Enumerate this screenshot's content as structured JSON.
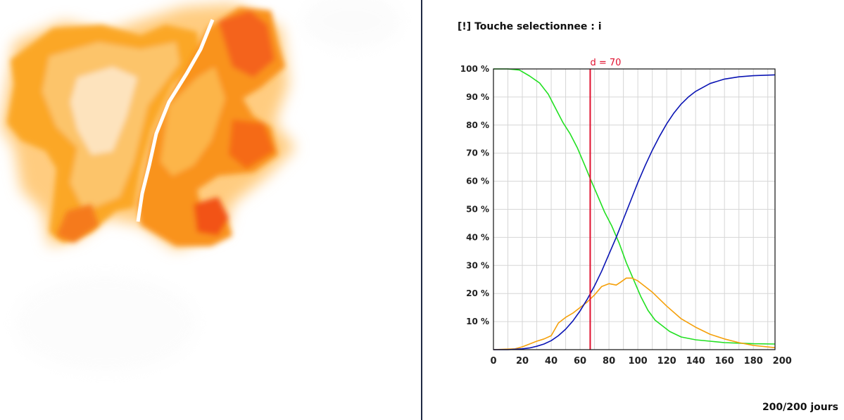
{
  "status": {
    "prefix": "[!]",
    "text": "Touche selectionnee : i"
  },
  "day_counter": "200/200 jours",
  "colors": {
    "susceptible": "#22e022",
    "infected": "#f5a00a",
    "removed": "#0a14b4",
    "marker": "#e0102e",
    "grid": "#d6d6d6",
    "divider": "#1f2a44"
  },
  "icons": {
    "simulation": "infection-heatmap"
  },
  "chart_data": {
    "type": "line",
    "x_ticks": [
      0,
      20,
      40,
      60,
      80,
      100,
      120,
      140,
      160,
      180,
      200
    ],
    "y_ticks": [
      "10 %",
      "20 %",
      "30 %",
      "40 %",
      "50 %",
      "60 %",
      "70 %",
      "80 %",
      "90 %",
      "100 %"
    ],
    "xlim": [
      0,
      195
    ],
    "ylim": [
      0,
      100
    ],
    "grid": true,
    "marker": {
      "label": "d = 70",
      "x": 67
    },
    "series": [
      {
        "color": "#22e022",
        "x": [
          0,
          10,
          18,
          25,
          32,
          38,
          43,
          48,
          53,
          58,
          63,
          67,
          72,
          77,
          82,
          87,
          92,
          97,
          102,
          107,
          112,
          117,
          122,
          130,
          140,
          150,
          160,
          170,
          180,
          195
        ],
        "y": [
          100,
          100,
          99.6,
          97.5,
          95,
          91,
          86,
          81,
          77,
          72,
          66,
          61,
          55,
          49,
          44,
          38,
          31,
          25,
          19,
          14,
          10.5,
          8.5,
          6.5,
          4.5,
          3.5,
          3,
          2.5,
          2.3,
          2.1,
          2
        ]
      },
      {
        "color": "#f5a00a",
        "x": [
          0,
          15,
          20,
          25,
          30,
          35,
          40,
          45,
          50,
          55,
          60,
          65,
          70,
          75,
          80,
          85,
          88,
          92,
          96,
          100,
          105,
          110,
          120,
          130,
          140,
          150,
          160,
          170,
          180,
          195
        ],
        "y": [
          0,
          0.3,
          1,
          2,
          3,
          3.8,
          5,
          9.5,
          11.5,
          13,
          15,
          17,
          19.5,
          22.5,
          23.5,
          23,
          24,
          25.5,
          25.5,
          24.5,
          22.5,
          20.5,
          15.5,
          11,
          8,
          5.5,
          3.8,
          2.5,
          1.5,
          0.7
        ]
      },
      {
        "color": "#0a14b4",
        "x": [
          0,
          10,
          20,
          25,
          30,
          35,
          40,
          45,
          50,
          55,
          60,
          65,
          70,
          75,
          80,
          85,
          90,
          95,
          100,
          105,
          110,
          115,
          120,
          125,
          130,
          135,
          140,
          150,
          160,
          170,
          180,
          195
        ],
        "y": [
          0,
          0,
          0.3,
          0.6,
          1.2,
          2,
          3.2,
          5,
          7.3,
          10.2,
          13.8,
          18,
          22.7,
          28,
          34,
          40,
          46.5,
          53,
          59.5,
          65.5,
          71,
          76,
          80.5,
          84.3,
          87.5,
          90,
          92,
          94.8,
          96.4,
          97.2,
          97.6,
          97.9
        ]
      }
    ]
  }
}
